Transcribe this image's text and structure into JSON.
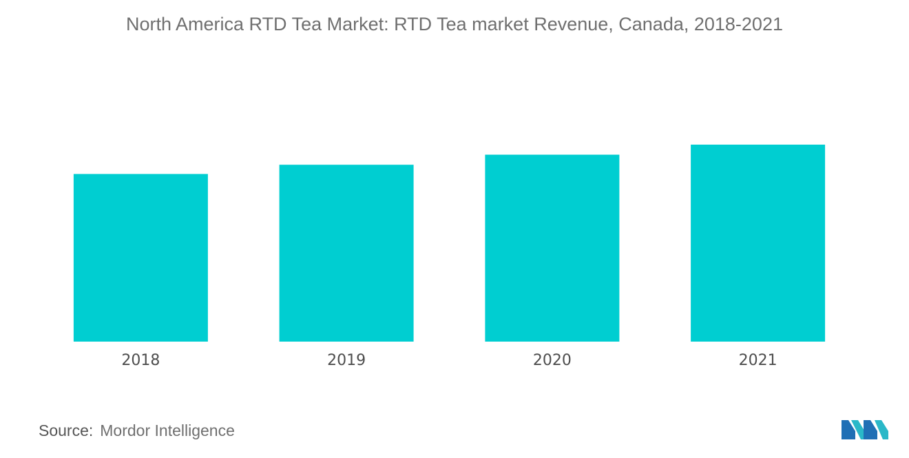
{
  "chart_data": {
    "type": "bar",
    "title": "North America RTD Tea Market: RTD Tea market Revenue, Canada, 2018-2021",
    "categories": [
      "2018",
      "2019",
      "2020",
      "2021"
    ],
    "values": [
      100,
      105.5,
      111.5,
      117.5
    ],
    "xlabel": "",
    "ylabel": "",
    "ylim": [
      0,
      117.5
    ],
    "grid": false,
    "legend": "none",
    "bar_color": "#00ced1"
  },
  "footer": {
    "source_label": "Source:",
    "source_value": "Mordor Intelligence"
  },
  "brand": {
    "logo_icon": "mordor-intelligence-logo-icon",
    "colors": [
      "#1f6fb5",
      "#2ab8c8"
    ]
  }
}
